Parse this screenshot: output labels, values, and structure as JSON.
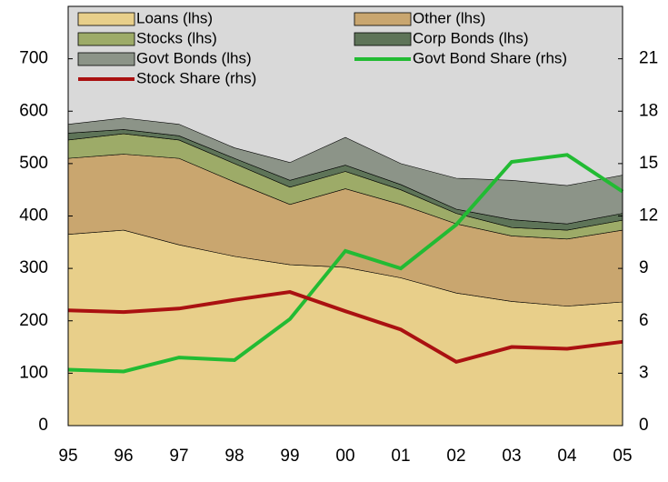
{
  "chart_data": {
    "type": "stacked_area_line",
    "categories": [
      "95",
      "96",
      "97",
      "98",
      "99",
      "00",
      "01",
      "02",
      "03",
      "04",
      "05"
    ],
    "series": [
      {
        "name": "Loans (lhs)",
        "color": "#e8cf8a",
        "values": [
          365,
          373,
          345,
          323,
          307,
          302,
          282,
          253,
          237,
          228,
          236
        ]
      },
      {
        "name": "Other (lhs)",
        "color": "#c9a66f",
        "values": [
          145,
          145,
          165,
          142,
          115,
          150,
          140,
          132,
          125,
          128,
          137
        ]
      },
      {
        "name": "Stocks (lhs)",
        "color": "#9dab68",
        "values": [
          35,
          39,
          35,
          35,
          33,
          33,
          28,
          20,
          16,
          17,
          19
        ]
      },
      {
        "name": "Corp Bonds (lhs)",
        "color": "#5e7458",
        "values": [
          13,
          8,
          8,
          10,
          13,
          12,
          10,
          8,
          15,
          12,
          13
        ]
      },
      {
        "name": "Govt Bonds (lhs)",
        "color": "#8c9488",
        "values": [
          17,
          22,
          22,
          20,
          34,
          53,
          40,
          59,
          75,
          73,
          73
        ]
      },
      {
        "name": "Govt Bond Share (rhs)",
        "color": "#22bb33",
        "axis": "y2",
        "values": [
          3.2,
          3.1,
          3.9,
          3.75,
          6.1,
          10.0,
          9.0,
          11.5,
          15.1,
          15.5,
          13.4
        ]
      },
      {
        "name": "Stock Share (rhs)",
        "color": "#aa1111",
        "axis": "y2",
        "values": [
          6.6,
          6.5,
          6.7,
          7.2,
          7.65,
          6.55,
          5.5,
          3.65,
          4.5,
          4.4,
          4.8
        ]
      }
    ],
    "ylim": [
      0,
      800
    ],
    "yticks": [
      0,
      100,
      200,
      300,
      400,
      500,
      600,
      700
    ],
    "y2lim": [
      0,
      24
    ],
    "y2ticks": [
      0,
      3,
      6,
      9,
      12,
      15,
      18,
      21
    ],
    "background": "#d9d9d9"
  }
}
